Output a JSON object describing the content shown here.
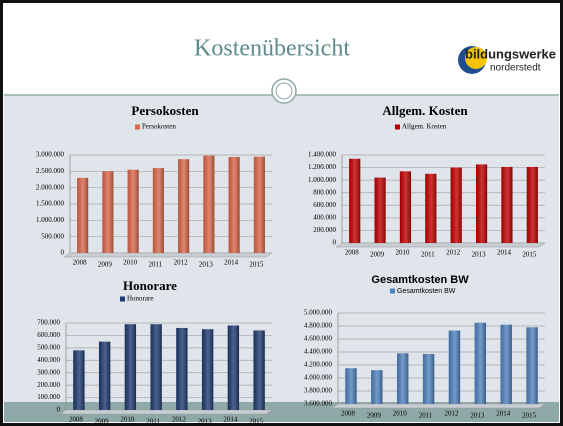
{
  "header": {
    "title": "Kostenübersicht",
    "logo": {
      "brand": "bildungswerke",
      "place": "norderstedt"
    }
  },
  "chart_data": [
    {
      "type": "bar",
      "title": "Persokosten",
      "categories": [
        "2008",
        "2009",
        "2010",
        "2011",
        "2012",
        "2013",
        "2014",
        "2015"
      ],
      "series": [
        {
          "name": "Persokosten",
          "color": "#d9674a",
          "values": [
            2300000,
            2500000,
            2550000,
            2600000,
            2870000,
            2980000,
            2940000,
            2950000
          ]
        }
      ],
      "ylim": [
        0,
        3000000
      ],
      "yticks": [
        0,
        {
          "value": 500000,
          "label": "500.000"
        },
        {
          "value": 1000000,
          "label": "1.000.000"
        },
        {
          "value": 1500000,
          "label": "1.500.000"
        },
        {
          "value": 2000000,
          "label": "2.000.000"
        },
        {
          "value": 2500000,
          "label": "2.500.000"
        },
        {
          "value": 3000000,
          "label": "3.000.000"
        }
      ],
      "grid": true,
      "legend": "top"
    },
    {
      "type": "bar",
      "title": "Allgem. Kosten",
      "categories": [
        "2008",
        "2009",
        "2010",
        "2011",
        "2012",
        "2013",
        "2014",
        "2015"
      ],
      "series": [
        {
          "name": "Allgem. Kosten",
          "color": "#c00000",
          "values": [
            1340000,
            1040000,
            1140000,
            1100000,
            1200000,
            1250000,
            1210000,
            1210000
          ]
        }
      ],
      "ylim": [
        0,
        1400000
      ],
      "yticks": [
        0,
        {
          "value": 200000,
          "label": "200.000"
        },
        {
          "value": 400000,
          "label": "400.000"
        },
        {
          "value": 600000,
          "label": "600.000"
        },
        {
          "value": 800000,
          "label": "800.000"
        },
        {
          "value": 1000000,
          "label": "1.000.000"
        },
        {
          "value": 1200000,
          "label": "1.200.000"
        },
        {
          "value": 1400000,
          "label": "1.400.000"
        }
      ],
      "grid": true,
      "legend": "top"
    },
    {
      "type": "bar",
      "title": "Honorare",
      "categories": [
        "2008",
        "2009",
        "2010",
        "2011",
        "2012",
        "2013",
        "2014",
        "2015"
      ],
      "series": [
        {
          "name": "Honorare",
          "color": "#1f3a70",
          "values": [
            480000,
            550000,
            690000,
            690000,
            660000,
            650000,
            680000,
            640000
          ]
        }
      ],
      "ylim": [
        0,
        700000
      ],
      "yticks": [
        0,
        {
          "value": 100000,
          "label": "100.000"
        },
        {
          "value": 200000,
          "label": "200.000"
        },
        {
          "value": 300000,
          "label": "300.000"
        },
        {
          "value": 400000,
          "label": "400.000"
        },
        {
          "value": 500000,
          "label": "500.000"
        },
        {
          "value": 600000,
          "label": "600.000"
        },
        {
          "value": 700000,
          "label": "700.000"
        }
      ],
      "grid": true,
      "legend": "top"
    },
    {
      "type": "bar",
      "title": "Gesamtkosten BW",
      "categories": [
        "2008",
        "2009",
        "2010",
        "2011",
        "2012",
        "2013",
        "2014",
        "2015"
      ],
      "series": [
        {
          "name": "Gesamtkosten BW",
          "color": "#4f81bd",
          "values": [
            4150000,
            4120000,
            4380000,
            4370000,
            4730000,
            4850000,
            4820000,
            4780000
          ]
        }
      ],
      "ylim": [
        3600000,
        5000000
      ],
      "yticks": [
        {
          "value": 3600000,
          "label": "3.600.000"
        },
        {
          "value": 3800000,
          "label": "3.800.000"
        },
        {
          "value": 4000000,
          "label": "4.000.000"
        },
        {
          "value": 4200000,
          "label": "4.200.000"
        },
        {
          "value": 4400000,
          "label": "4.400.000"
        },
        {
          "value": 4600000,
          "label": "4.600.000"
        },
        {
          "value": 4800000,
          "label": "4.800.000"
        },
        {
          "value": 5000000,
          "label": "5.000.000"
        }
      ],
      "grid": true,
      "legend": "top"
    }
  ]
}
